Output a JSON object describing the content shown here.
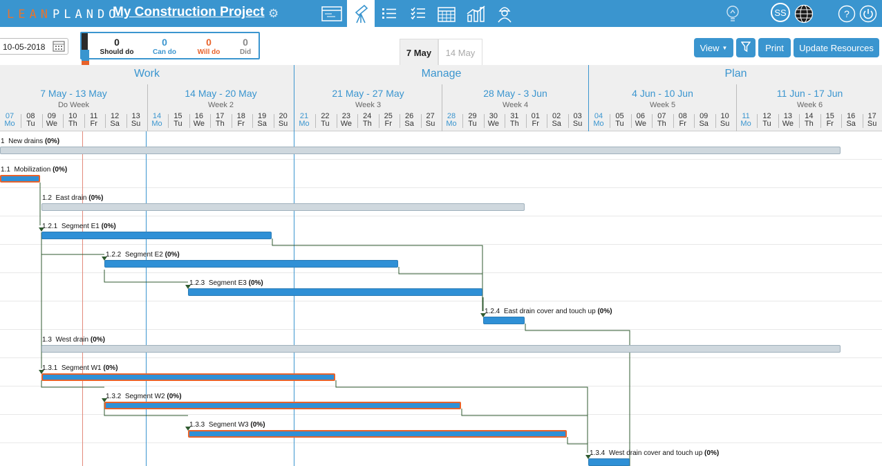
{
  "header": {
    "logo_lean": "LEAN",
    "logo_plando": "PLANDO",
    "project_title": "My Construction Project",
    "avatar_initials": "SS",
    "accent_color": "#3a95cf"
  },
  "toolbar": {
    "date_value": "10-05-2018",
    "legend": {
      "should_do": {
        "count": "0",
        "label": "Should do"
      },
      "can_do": {
        "count": "0",
        "label": "Can do"
      },
      "will_do": {
        "count": "0",
        "label": "Will do"
      },
      "did": {
        "count": "0",
        "label": "Did"
      }
    },
    "date_tabs": [
      "7 May",
      "14 May"
    ],
    "view_label": "View",
    "print_label": "Print",
    "update_resources_label": "Update Resources"
  },
  "timeline": {
    "phases": [
      "Work",
      "Manage",
      "Plan"
    ],
    "weeks": [
      {
        "range": "7 May - 13 May",
        "name": "Do Week"
      },
      {
        "range": "14 May - 20 May",
        "name": "Week 2"
      },
      {
        "range": "21 May - 27 May",
        "name": "Week 3"
      },
      {
        "range": "28 May - 3 Jun",
        "name": "Week 4"
      },
      {
        "range": "4 Jun - 10 Jun",
        "name": "Week 5"
      },
      {
        "range": "11 Jun - 17 Jun",
        "name": "Week 6"
      }
    ],
    "days": [
      {
        "n": "07",
        "d": "Mo"
      },
      {
        "n": "08",
        "d": "Tu"
      },
      {
        "n": "09",
        "d": "We"
      },
      {
        "n": "10",
        "d": "Th"
      },
      {
        "n": "11",
        "d": "Fr"
      },
      {
        "n": "12",
        "d": "Sa"
      },
      {
        "n": "13",
        "d": "Su"
      },
      {
        "n": "14",
        "d": "Mo"
      },
      {
        "n": "15",
        "d": "Tu"
      },
      {
        "n": "16",
        "d": "We"
      },
      {
        "n": "17",
        "d": "Th"
      },
      {
        "n": "18",
        "d": "Fr"
      },
      {
        "n": "19",
        "d": "Sa"
      },
      {
        "n": "20",
        "d": "Su"
      },
      {
        "n": "21",
        "d": "Mo"
      },
      {
        "n": "22",
        "d": "Tu"
      },
      {
        "n": "23",
        "d": "We"
      },
      {
        "n": "24",
        "d": "Th"
      },
      {
        "n": "25",
        "d": "Fr"
      },
      {
        "n": "26",
        "d": "Sa"
      },
      {
        "n": "27",
        "d": "Su"
      },
      {
        "n": "28",
        "d": "Mo"
      },
      {
        "n": "29",
        "d": "Tu"
      },
      {
        "n": "30",
        "d": "We"
      },
      {
        "n": "31",
        "d": "Th"
      },
      {
        "n": "01",
        "d": "Fr"
      },
      {
        "n": "02",
        "d": "Sa"
      },
      {
        "n": "03",
        "d": "Su"
      },
      {
        "n": "04",
        "d": "Mo"
      },
      {
        "n": "05",
        "d": "Tu"
      },
      {
        "n": "06",
        "d": "We"
      },
      {
        "n": "07",
        "d": "Th"
      },
      {
        "n": "08",
        "d": "Fr"
      },
      {
        "n": "09",
        "d": "Sa"
      },
      {
        "n": "10",
        "d": "Su"
      },
      {
        "n": "11",
        "d": "Mo"
      },
      {
        "n": "12",
        "d": "Tu"
      },
      {
        "n": "13",
        "d": "We"
      },
      {
        "n": "14",
        "d": "Th"
      },
      {
        "n": "15",
        "d": "Fr"
      },
      {
        "n": "16",
        "d": "Sa"
      },
      {
        "n": "17",
        "d": "Su"
      }
    ]
  },
  "tasks": [
    {
      "id": "1",
      "name": "New drains",
      "pct": "(0%)",
      "type": "sum"
    },
    {
      "id": "1.1",
      "name": "Mobilization",
      "pct": "(0%)",
      "type": "will"
    },
    {
      "id": "1.2",
      "name": "East drain",
      "pct": "(0%)",
      "type": "sum"
    },
    {
      "id": "1.2.1",
      "name": "Segment E1",
      "pct": "(0%)",
      "type": "task"
    },
    {
      "id": "1.2.2",
      "name": "Segment E2",
      "pct": "(0%)",
      "type": "task"
    },
    {
      "id": "1.2.3",
      "name": "Segment E3",
      "pct": "(0%)",
      "type": "task"
    },
    {
      "id": "1.2.4",
      "name": "East drain cover and touch up",
      "pct": "(0%)",
      "type": "task"
    },
    {
      "id": "1.3",
      "name": "West drain",
      "pct": "(0%)",
      "type": "sum"
    },
    {
      "id": "1.3.1",
      "name": "Segment W1",
      "pct": "(0%)",
      "type": "will"
    },
    {
      "id": "1.3.2",
      "name": "Segment W2",
      "pct": "(0%)",
      "type": "will"
    },
    {
      "id": "1.3.3",
      "name": "Segment W3",
      "pct": "(0%)",
      "type": "will"
    },
    {
      "id": "1.3.4",
      "name": "West drain cover and touch up",
      "pct": "(0%)",
      "type": "task"
    }
  ]
}
